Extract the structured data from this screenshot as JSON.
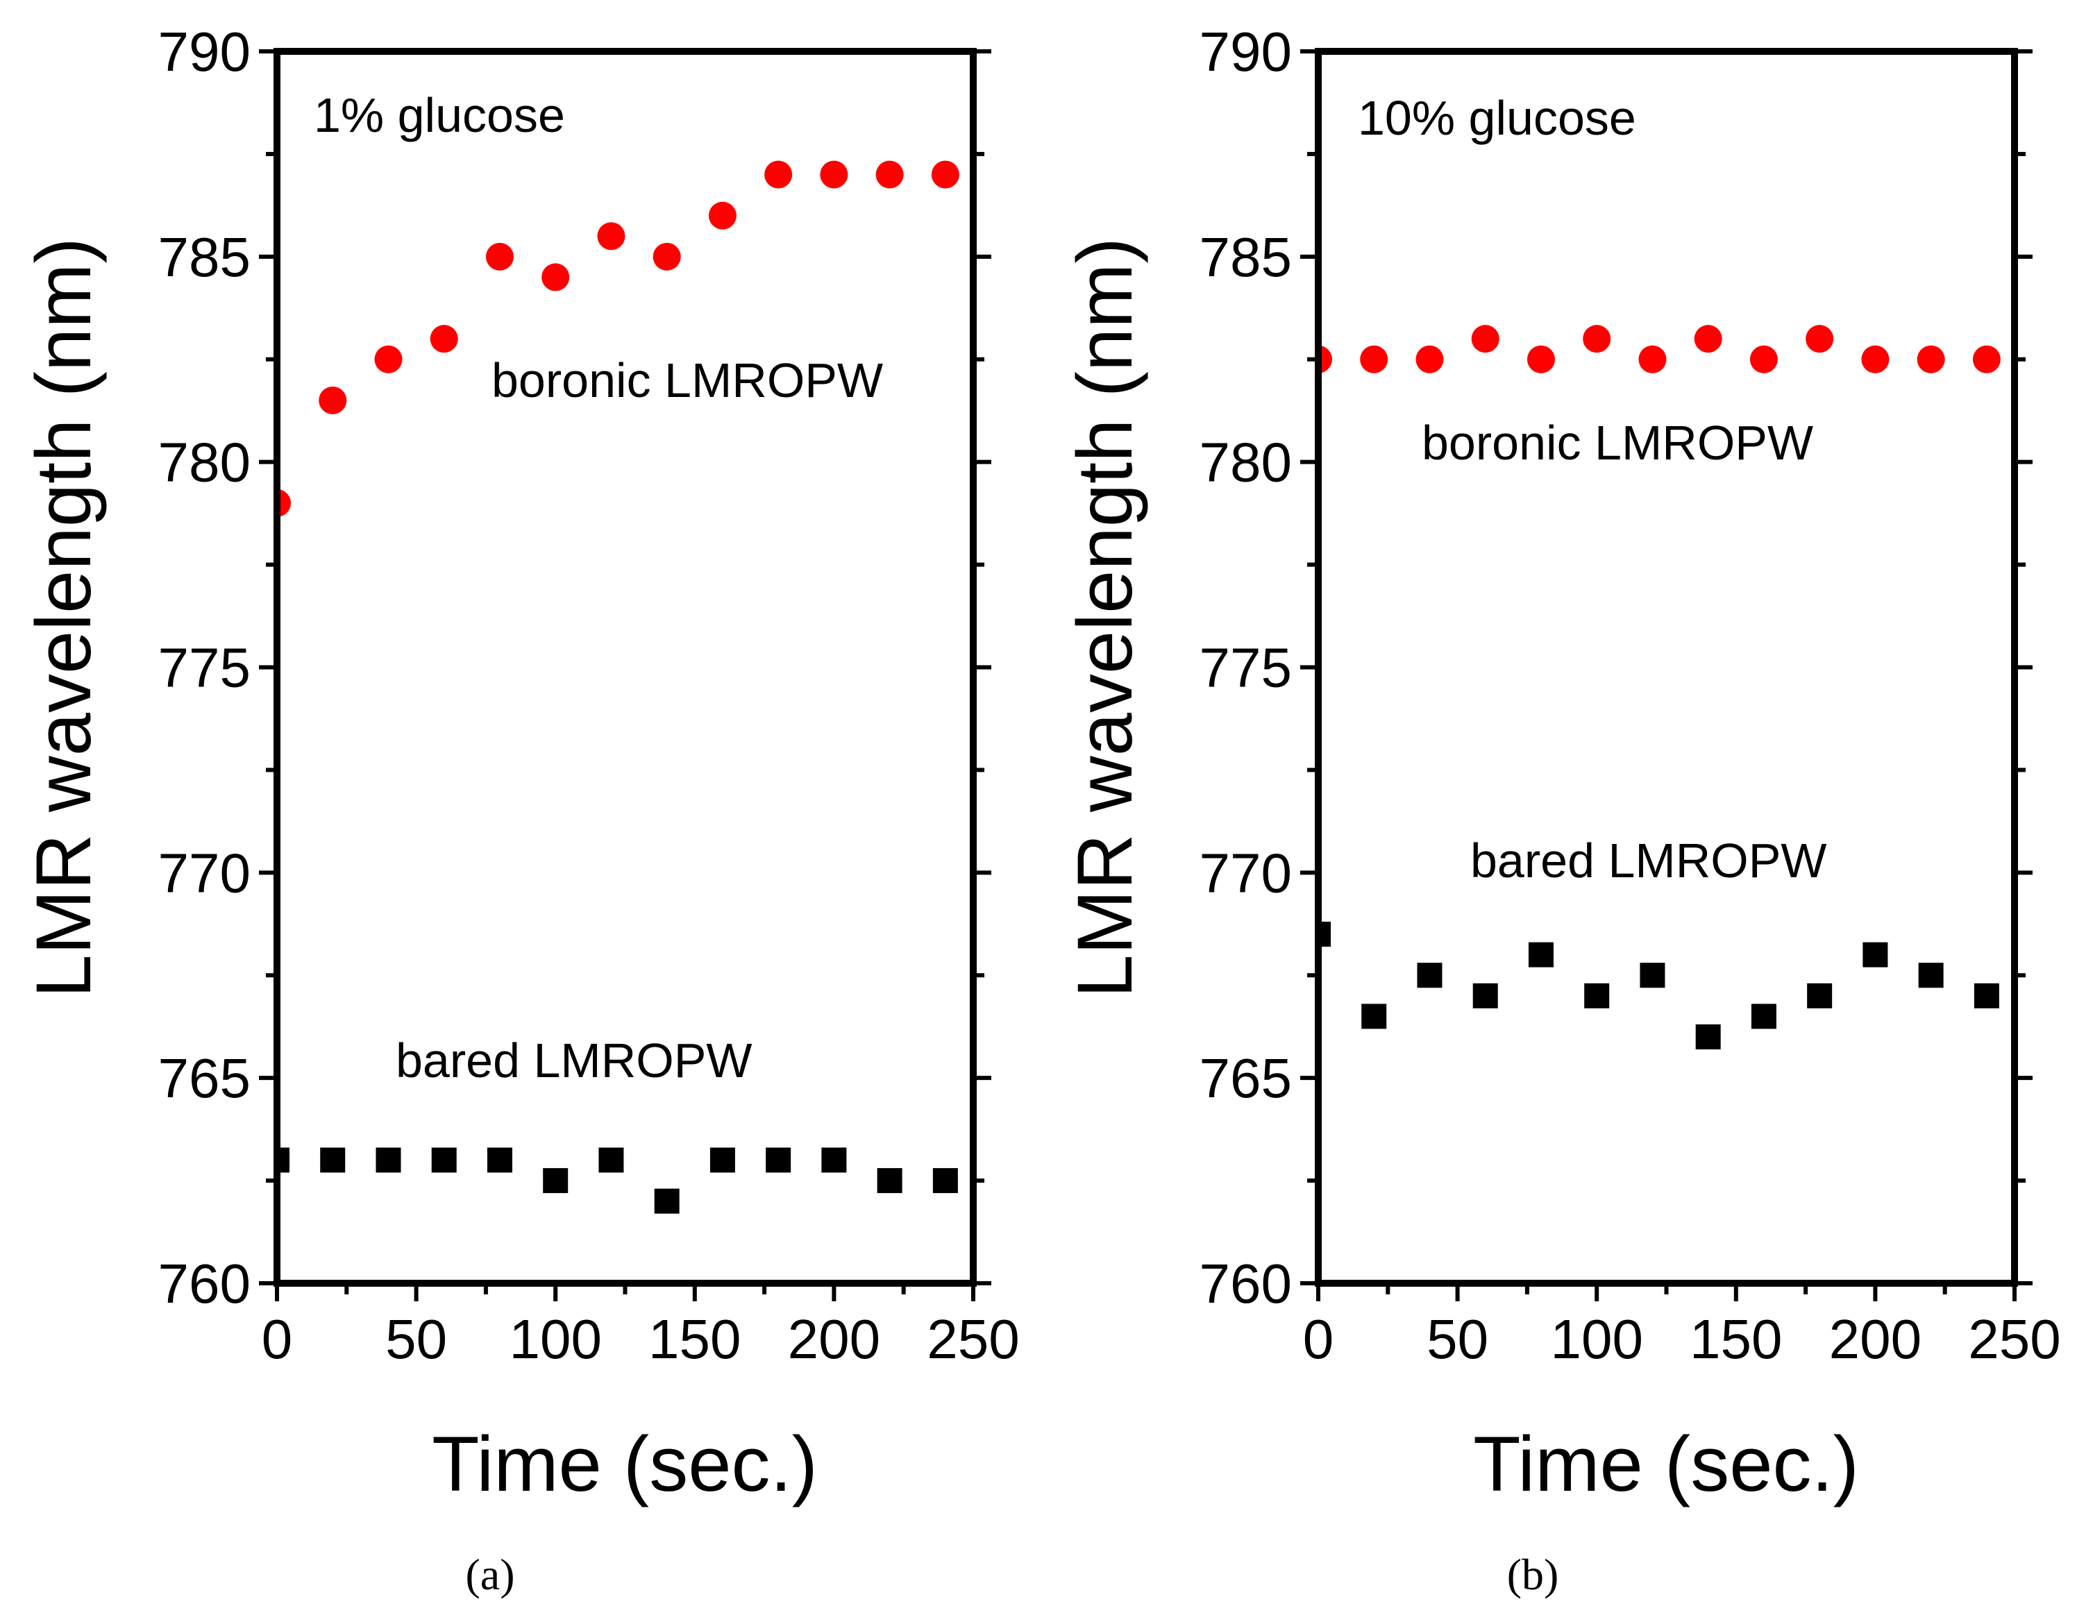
{
  "chart_data": [
    {
      "type": "scatter",
      "panel_label": "(a)",
      "annotation": "1% glucose",
      "xlabel": "Time (sec.)",
      "ylabel": "LMR wavelength (nm)",
      "xlim": [
        0,
        250
      ],
      "ylim": [
        760,
        790
      ],
      "xticks": [
        0,
        50,
        100,
        150,
        200,
        250
      ],
      "yticks": [
        760,
        765,
        770,
        775,
        780,
        785,
        790
      ],
      "series": [
        {
          "name": "boronic LMROPW",
          "marker": "circle",
          "color": "#ff0000",
          "x": [
            0,
            20,
            40,
            60,
            80,
            100,
            120,
            140,
            160,
            180,
            200,
            220,
            240
          ],
          "y": [
            779,
            781.5,
            782.5,
            783,
            785,
            784.5,
            785.5,
            785,
            786,
            787,
            787,
            787,
            787
          ]
        },
        {
          "name": "bared LMROPW",
          "marker": "square",
          "color": "#000000",
          "x": [
            0,
            20,
            40,
            60,
            80,
            100,
            120,
            140,
            160,
            180,
            200,
            220,
            240
          ],
          "y": [
            763,
            763,
            763,
            763,
            763,
            762.5,
            763,
            762,
            763,
            763,
            763,
            762.5,
            762.5
          ]
        }
      ]
    },
    {
      "type": "scatter",
      "panel_label": "(b)",
      "annotation": "10% glucose",
      "xlabel": "Time (sec.)",
      "ylabel": "LMR wavelength (nm)",
      "xlim": [
        0,
        250
      ],
      "ylim": [
        760,
        790
      ],
      "xticks": [
        0,
        50,
        100,
        150,
        200,
        250
      ],
      "yticks": [
        760,
        765,
        770,
        775,
        780,
        785,
        790
      ],
      "series": [
        {
          "name": "boronic LMROPW",
          "marker": "circle",
          "color": "#ff0000",
          "x": [
            0,
            20,
            40,
            60,
            80,
            100,
            120,
            140,
            160,
            180,
            200,
            220,
            240
          ],
          "y": [
            782.5,
            782.5,
            782.5,
            783,
            782.5,
            783,
            782.5,
            783,
            782.5,
            783,
            782.5,
            782.5,
            782.5
          ]
        },
        {
          "name": "bared LMROPW",
          "marker": "square",
          "color": "#000000",
          "x": [
            0,
            20,
            40,
            60,
            80,
            100,
            120,
            140,
            160,
            180,
            200,
            220,
            240
          ],
          "y": [
            768.5,
            766.5,
            767.5,
            767,
            768,
            767,
            767.5,
            766,
            766.5,
            767,
            768,
            767.5,
            767
          ]
        }
      ]
    }
  ]
}
